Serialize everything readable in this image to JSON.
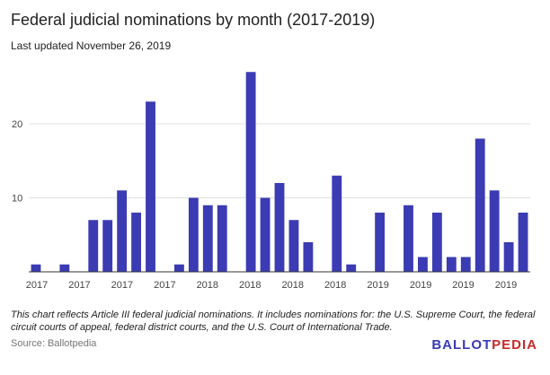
{
  "header": {
    "title": "Federal judicial nominations by month (2017-2019)",
    "subtitle": "Last updated November 26, 2019"
  },
  "footer": {
    "note": "This chart reflects Article III federal judicial nominations. It includes nominations for: the U.S. Supreme Court, the federal circuit courts of appeal, federal district courts, and the U.S. Court of International Trade.",
    "source": "Source: Ballotpedia",
    "brand_main": "BALLOT",
    "brand_accent": "PEDIA"
  },
  "colors": {
    "bar": "#3b3bb3",
    "grid": "#e0e0e0",
    "axis": "#333333",
    "tick_text": "#444444",
    "brand": "#3a3ab4",
    "brand_accent": "#c52a2a"
  },
  "chart_data": {
    "type": "bar",
    "title": "Federal judicial nominations by month (2017-2019)",
    "xlabel": "",
    "ylabel": "",
    "ylim": [
      0,
      28
    ],
    "yticks": [
      10,
      20
    ],
    "grid": true,
    "legend": "none",
    "x_tick_labels": [
      "2017",
      "2017",
      "2017",
      "2017",
      "2018",
      "2018",
      "2018",
      "2018",
      "2019",
      "2019",
      "2019",
      "2019"
    ],
    "values": [
      1,
      0,
      1,
      0,
      7,
      7,
      11,
      8,
      23,
      0,
      1,
      10,
      9,
      9,
      0,
      27,
      10,
      12,
      7,
      4,
      0,
      13,
      1,
      0,
      8,
      0,
      9,
      2,
      8,
      2,
      2,
      18,
      11,
      4,
      8
    ]
  }
}
